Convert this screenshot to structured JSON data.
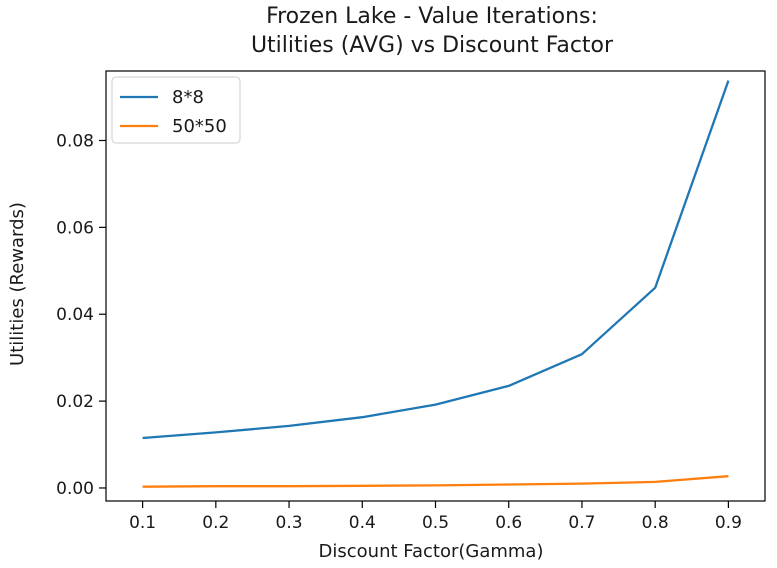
{
  "chart_data": {
    "type": "line",
    "title_lines": [
      "Frozen Lake - Value Iterations:",
      "Utilities (AVG) vs Discount Factor"
    ],
    "xlabel": "Discount Factor(Gamma)",
    "ylabel": "Utilities (Rewards)",
    "x": [
      0.1,
      0.2,
      0.3,
      0.4,
      0.5,
      0.6,
      0.7,
      0.8,
      0.9
    ],
    "xlim": [
      0.05,
      0.95
    ],
    "ylim": [
      -0.003,
      0.096
    ],
    "x_ticks": [
      "0.1",
      "0.2",
      "0.3",
      "0.4",
      "0.5",
      "0.6",
      "0.7",
      "0.8",
      "0.9"
    ],
    "x_tick_values": [
      0.1,
      0.2,
      0.3,
      0.4,
      0.5,
      0.6,
      0.7,
      0.8,
      0.9
    ],
    "y_ticks": [
      "0.00",
      "0.02",
      "0.04",
      "0.06",
      "0.08"
    ],
    "y_tick_values": [
      0.0,
      0.02,
      0.04,
      0.06,
      0.08
    ],
    "grid": false,
    "legend_position": "top-left",
    "series": [
      {
        "name": "8*8",
        "color": "#1f77b4",
        "values": [
          0.0115,
          0.0128,
          0.0143,
          0.0163,
          0.0192,
          0.0235,
          0.0308,
          0.0461,
          0.0938
        ]
      },
      {
        "name": "50*50",
        "color": "#ff7f0e",
        "values": [
          0.0003,
          0.0004,
          0.0004,
          0.0005,
          0.0006,
          0.0008,
          0.001,
          0.0014,
          0.0027
        ]
      }
    ]
  }
}
